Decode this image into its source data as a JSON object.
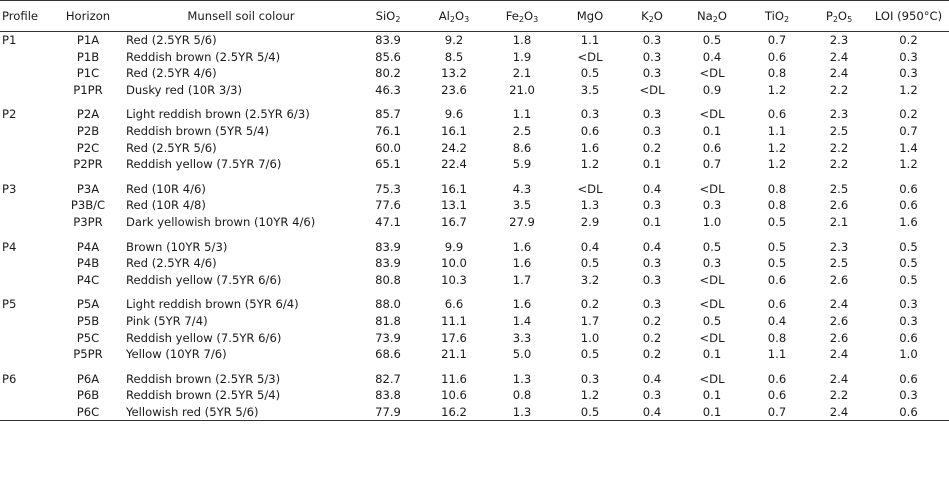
{
  "table": {
    "headers": {
      "profile": "Profile",
      "horizon": "Horizon",
      "colour": "Munsell soil colour",
      "sio2": {
        "a": "SiO",
        "s1": "2",
        "b": "",
        "s2": ""
      },
      "al2o3": {
        "a": "Al",
        "s1": "2",
        "b": "O",
        "s2": "3"
      },
      "fe2o3": {
        "a": "Fe",
        "s1": "2",
        "b": "O",
        "s2": "3"
      },
      "mgo": "MgO",
      "k2o": {
        "a": "K",
        "s1": "2",
        "b": "O",
        "s2": ""
      },
      "na2o": {
        "a": "Na",
        "s1": "2",
        "b": "O",
        "s2": ""
      },
      "tio2": {
        "a": "TiO",
        "s1": "2",
        "b": "",
        "s2": ""
      },
      "p2o5": {
        "a": "P",
        "s1": "2",
        "b": "O",
        "s2": "5"
      },
      "loi": "LOI (950°C)"
    },
    "groups": [
      {
        "profile": "P1",
        "rows": [
          [
            "P1A",
            "Red (2.5YR 5/6)",
            "83.9",
            "9.2",
            "1.8",
            "1.1",
            "0.3",
            "0.5",
            "0.7",
            "2.3",
            "0.2"
          ],
          [
            "P1B",
            "Reddish brown (2.5YR 5/4)",
            "85.6",
            "8.5",
            "1.9",
            "<DL",
            "0.3",
            "0.4",
            "0.6",
            "2.4",
            "0.3"
          ],
          [
            "P1C",
            "Red (2.5YR 4/6)",
            "80.2",
            "13.2",
            "2.1",
            "0.5",
            "0.3",
            "<DL",
            "0.8",
            "2.4",
            "0.3"
          ],
          [
            "P1PR",
            "Dusky red (10R 3/3)",
            "46.3",
            "23.6",
            "21.0",
            "3.5",
            "<DL",
            "0.9",
            "1.2",
            "2.2",
            "1.2"
          ]
        ]
      },
      {
        "profile": "P2",
        "rows": [
          [
            "P2A",
            "Light reddish brown (2.5YR 6/3)",
            "85.7",
            "9.6",
            "1.1",
            "0.3",
            "0.3",
            "<DL",
            "0.6",
            "2.3",
            "0.2"
          ],
          [
            "P2B",
            "Reddish brown (5YR 5/4)",
            "76.1",
            "16.1",
            "2.5",
            "0.6",
            "0.3",
            "0.1",
            "1.1",
            "2.5",
            "0.7"
          ],
          [
            "P2C",
            "Red (2.5YR 5/6)",
            "60.0",
            "24.2",
            "8.6",
            "1.6",
            "0.2",
            "0.6",
            "1.2",
            "2.2",
            "1.4"
          ],
          [
            "P2PR",
            "Reddish yellow (7.5YR 7/6)",
            "65.1",
            "22.4",
            "5.9",
            "1.2",
            "0.1",
            "0.7",
            "1.2",
            "2.2",
            "1.2"
          ]
        ]
      },
      {
        "profile": "P3",
        "rows": [
          [
            "P3A",
            "Red (10R 4/6)",
            "75.3",
            "16.1",
            "4.3",
            "<DL",
            "0.4",
            "<DL",
            "0.8",
            "2.5",
            "0.6"
          ],
          [
            "P3B/C",
            "Red (10R 4/8)",
            "77.6",
            "13.1",
            "3.5",
            "1.3",
            "0.3",
            "0.3",
            "0.8",
            "2.6",
            "0.6"
          ],
          [
            "P3PR",
            "Dark yellowish brown (10YR 4/6)",
            "47.1",
            "16.7",
            "27.9",
            "2.9",
            "0.1",
            "1.0",
            "0.5",
            "2.1",
            "1.6"
          ]
        ]
      },
      {
        "profile": "P4",
        "rows": [
          [
            "P4A",
            "Brown (10YR 5/3)",
            "83.9",
            "9.9",
            "1.6",
            "0.4",
            "0.4",
            "0.5",
            "0.5",
            "2.3",
            "0.5"
          ],
          [
            "P4B",
            "Red (2.5YR 4/6)",
            "83.9",
            "10.0",
            "1.6",
            "0.5",
            "0.3",
            "0.3",
            "0.5",
            "2.5",
            "0.5"
          ],
          [
            "P4C",
            "Reddish yellow (7.5YR 6/6)",
            "80.8",
            "10.3",
            "1.7",
            "3.2",
            "0.3",
            "<DL",
            "0.6",
            "2.6",
            "0.5"
          ]
        ]
      },
      {
        "profile": "P5",
        "rows": [
          [
            "P5A",
            "Light reddish brown (5YR 6/4)",
            "88.0",
            "6.6",
            "1.6",
            "0.2",
            "0.3",
            "<DL",
            "0.6",
            "2.4",
            "0.3"
          ],
          [
            "P5B",
            "Pink (5YR 7/4)",
            "81.8",
            "11.1",
            "1.4",
            "1.7",
            "0.2",
            "0.5",
            "0.4",
            "2.6",
            "0.3"
          ],
          [
            "P5C",
            "Reddish yellow (7.5YR 6/6)",
            "73.9",
            "17.6",
            "3.3",
            "1.0",
            "0.2",
            "<DL",
            "0.8",
            "2.6",
            "0.6"
          ],
          [
            "P5PR",
            "Yellow (10YR 7/6)",
            "68.6",
            "21.1",
            "5.0",
            "0.5",
            "0.2",
            "0.1",
            "1.1",
            "2.4",
            "1.0"
          ]
        ]
      },
      {
        "profile": "P6",
        "rows": [
          [
            "P6A",
            "Reddish brown (2.5YR 5/3)",
            "82.7",
            "11.6",
            "1.3",
            "0.3",
            "0.4",
            "<DL",
            "0.6",
            "2.4",
            "0.6"
          ],
          [
            "P6B",
            "Reddish brown (2.5YR 5/4)",
            "83.8",
            "10.6",
            "0.8",
            "1.2",
            "0.3",
            "0.1",
            "0.6",
            "2.2",
            "0.3"
          ],
          [
            "P6C",
            "Yellowish red (5YR 5/6)",
            "77.9",
            "16.2",
            "1.3",
            "0.5",
            "0.4",
            "0.1",
            "0.7",
            "2.4",
            "0.6"
          ]
        ]
      }
    ]
  }
}
